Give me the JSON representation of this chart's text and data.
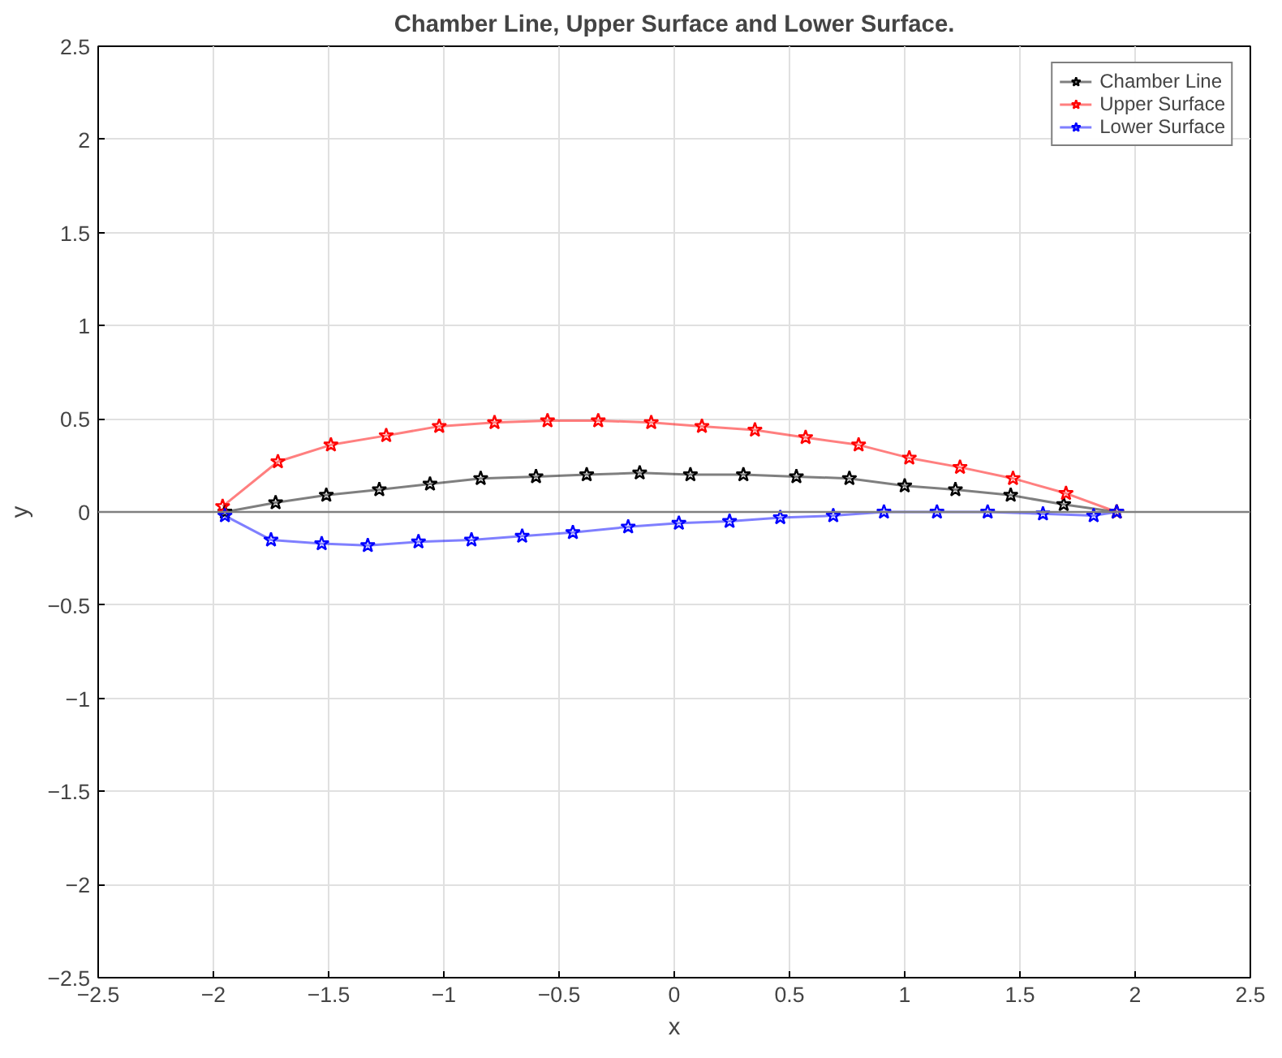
{
  "chart_data": {
    "type": "line",
    "title": "Chamber Line, Upper Surface and Lower Surface.",
    "xlabel": "x",
    "ylabel": "y",
    "xlim": [
      -2.5,
      2.5
    ],
    "ylim": [
      -2.5,
      2.5
    ],
    "xticks": [
      -2.5,
      -2,
      -1.5,
      -1,
      -0.5,
      0,
      0.5,
      1,
      1.5,
      2,
      2.5
    ],
    "yticks": [
      -2.5,
      -2,
      -1.5,
      -1,
      -0.5,
      0,
      0.5,
      1,
      1.5,
      2,
      2.5
    ],
    "grid": true,
    "legend": "top right",
    "marker": "star",
    "line_style": "solid",
    "ref_lines": [
      {
        "axis": "y",
        "value": 0,
        "color": "#808080"
      }
    ],
    "series": [
      {
        "name": "Chamber Line",
        "color": "#000000",
        "x": [
          -1.95,
          -1.73,
          -1.51,
          -1.28,
          -1.06,
          -0.84,
          -0.6,
          -0.38,
          -0.15,
          0.07,
          0.3,
          0.53,
          0.76,
          1.0,
          1.22,
          1.46,
          1.69,
          1.92
        ],
        "values": [
          0,
          0.05,
          0.09,
          0.12,
          0.15,
          0.18,
          0.19,
          0.2,
          0.21,
          0.2,
          0.2,
          0.19,
          0.18,
          0.14,
          0.12,
          0.09,
          0.04,
          0
        ]
      },
      {
        "name": "Upper Surface",
        "color": "#ff0000",
        "x": [
          -1.96,
          -1.72,
          -1.49,
          -1.25,
          -1.02,
          -0.78,
          -0.55,
          -0.33,
          -0.1,
          0.12,
          0.35,
          0.57,
          0.8,
          1.02,
          1.24,
          1.47,
          1.7,
          1.92
        ],
        "values": [
          0.03,
          0.27,
          0.36,
          0.41,
          0.46,
          0.48,
          0.49,
          0.49,
          0.48,
          0.46,
          0.44,
          0.4,
          0.36,
          0.29,
          0.24,
          0.18,
          0.1,
          0
        ]
      },
      {
        "name": "Lower Surface",
        "color": "#0000ff",
        "x": [
          -1.95,
          -1.75,
          -1.53,
          -1.33,
          -1.11,
          -0.88,
          -0.66,
          -0.44,
          -0.2,
          0.02,
          0.24,
          0.46,
          0.69,
          0.91,
          1.14,
          1.36,
          1.6,
          1.82,
          1.92
        ],
        "values": [
          -0.02,
          -0.15,
          -0.17,
          -0.18,
          -0.16,
          -0.15,
          -0.13,
          -0.11,
          -0.08,
          -0.06,
          -0.05,
          -0.03,
          -0.02,
          0,
          0,
          0,
          -0.01,
          -0.02,
          0
        ]
      }
    ]
  }
}
